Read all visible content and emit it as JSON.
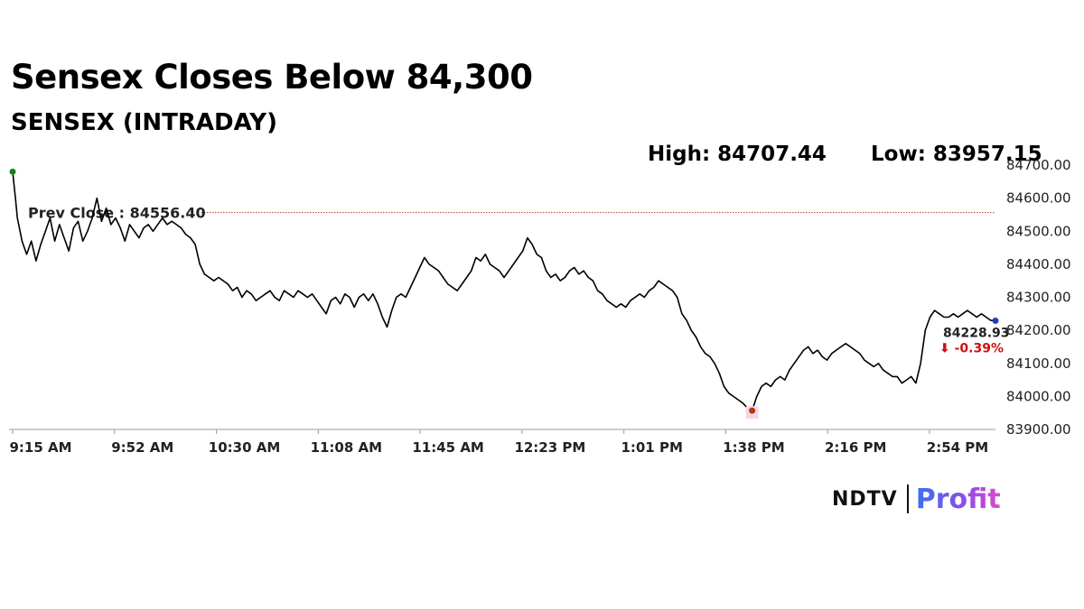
{
  "header": {
    "title": "Sensex Closes Below 84,300",
    "subtitle": "SENSEX (INTRADAY)",
    "high_text": "High: 84707.44",
    "low_text": "Low: 83957.15"
  },
  "logo": {
    "brand": "NDTV",
    "product": "Profit"
  },
  "colors": {
    "line": "#000000",
    "prev_close_line": "#c0392b",
    "open_marker": "#1a7f1a",
    "low_marker": "#b03a10",
    "close_marker": "#1f3fb5",
    "change_negative": "#d01010",
    "axis": "#999999"
  },
  "chart_data": {
    "type": "line",
    "title": "SENSEX (INTRADAY)",
    "xlabel": "",
    "ylabel": "",
    "ylim": [
      83900,
      84700
    ],
    "x_tick_labels": [
      "9:15 AM",
      "9:52 AM",
      "10:30 AM",
      "11:08 AM",
      "11:45 AM",
      "12:23 PM",
      "1:01 PM",
      "1:38 PM",
      "2:16 PM",
      "2:54 PM"
    ],
    "y_tick_labels": [
      "84700.00",
      "84600.00",
      "84500.00",
      "84400.00",
      "84300.00",
      "84200.00",
      "84100.00",
      "84000.00",
      "83900.00"
    ],
    "grid": false,
    "prev_close": {
      "label": "Prev Close : 84556.40",
      "value": 84556.4
    },
    "high": 84707.44,
    "low": 83957.15,
    "last": {
      "value_label": "84228.93",
      "change_label": "⬇ -0.39%"
    },
    "series": [
      {
        "values": [
          [
            0,
            84680
          ],
          [
            0.6,
            84600
          ],
          [
            1,
            84540
          ],
          [
            2,
            84470
          ],
          [
            3,
            84430
          ],
          [
            4,
            84470
          ],
          [
            5,
            84410
          ],
          [
            6,
            84460
          ],
          [
            7,
            84500
          ],
          [
            8,
            84540
          ],
          [
            9,
            84470
          ],
          [
            10,
            84520
          ],
          [
            11,
            84480
          ],
          [
            12,
            84440
          ],
          [
            13,
            84510
          ],
          [
            14,
            84530
          ],
          [
            15,
            84470
          ],
          [
            16,
            84500
          ],
          [
            17,
            84540
          ],
          [
            18,
            84600
          ],
          [
            19,
            84530
          ],
          [
            20,
            84570
          ],
          [
            21,
            84520
          ],
          [
            22,
            84540
          ],
          [
            23,
            84510
          ],
          [
            24,
            84470
          ],
          [
            25,
            84520
          ],
          [
            26,
            84500
          ],
          [
            27,
            84480
          ],
          [
            28,
            84510
          ],
          [
            29,
            84520
          ],
          [
            30,
            84500
          ],
          [
            31,
            84520
          ],
          [
            32,
            84540
          ],
          [
            33,
            84520
          ],
          [
            34,
            84530
          ],
          [
            35,
            84520
          ],
          [
            36,
            84510
          ],
          [
            37,
            84490
          ],
          [
            38,
            84480
          ],
          [
            39,
            84460
          ],
          [
            40,
            84400
          ],
          [
            41,
            84370
          ],
          [
            42,
            84360
          ],
          [
            43,
            84350
          ],
          [
            44,
            84360
          ],
          [
            45,
            84350
          ],
          [
            46,
            84340
          ],
          [
            47,
            84320
          ],
          [
            48,
            84330
          ],
          [
            49,
            84300
          ],
          [
            50,
            84320
          ],
          [
            51,
            84310
          ],
          [
            52,
            84290
          ],
          [
            53,
            84300
          ],
          [
            54,
            84310
          ],
          [
            55,
            84320
          ],
          [
            56,
            84300
          ],
          [
            57,
            84290
          ],
          [
            58,
            84320
          ],
          [
            59,
            84310
          ],
          [
            60,
            84300
          ],
          [
            61,
            84320
          ],
          [
            62,
            84310
          ],
          [
            63,
            84300
          ],
          [
            64,
            84310
          ],
          [
            65,
            84290
          ],
          [
            66,
            84270
          ],
          [
            67,
            84250
          ],
          [
            68,
            84290
          ],
          [
            69,
            84300
          ],
          [
            70,
            84280
          ],
          [
            71,
            84310
          ],
          [
            72,
            84300
          ],
          [
            73,
            84270
          ],
          [
            74,
            84300
          ],
          [
            75,
            84310
          ],
          [
            76,
            84290
          ],
          [
            77,
            84310
          ],
          [
            78,
            84280
          ],
          [
            79,
            84240
          ],
          [
            80,
            84210
          ],
          [
            81,
            84260
          ],
          [
            82,
            84300
          ],
          [
            83,
            84310
          ],
          [
            84,
            84300
          ],
          [
            85,
            84330
          ],
          [
            86,
            84360
          ],
          [
            87,
            84390
          ],
          [
            88,
            84420
          ],
          [
            89,
            84400
          ],
          [
            90,
            84390
          ],
          [
            91,
            84380
          ],
          [
            92,
            84360
          ],
          [
            93,
            84340
          ],
          [
            94,
            84330
          ],
          [
            95,
            84320
          ],
          [
            96,
            84340
          ],
          [
            97,
            84360
          ],
          [
            98,
            84380
          ],
          [
            99,
            84420
          ],
          [
            100,
            84410
          ],
          [
            101,
            84430
          ],
          [
            102,
            84400
          ],
          [
            103,
            84390
          ],
          [
            104,
            84380
          ],
          [
            105,
            84360
          ],
          [
            106,
            84380
          ],
          [
            107,
            84400
          ],
          [
            108,
            84420
          ],
          [
            109,
            84440
          ],
          [
            110,
            84480
          ],
          [
            111,
            84460
          ],
          [
            112,
            84430
          ],
          [
            113,
            84420
          ],
          [
            114,
            84380
          ],
          [
            115,
            84360
          ],
          [
            116,
            84370
          ],
          [
            117,
            84350
          ],
          [
            118,
            84360
          ],
          [
            119,
            84380
          ],
          [
            120,
            84390
          ],
          [
            121,
            84370
          ],
          [
            122,
            84380
          ],
          [
            123,
            84360
          ],
          [
            124,
            84350
          ],
          [
            125,
            84320
          ],
          [
            126,
            84310
          ],
          [
            127,
            84290
          ],
          [
            128,
            84280
          ],
          [
            129,
            84270
          ],
          [
            130,
            84280
          ],
          [
            131,
            84270
          ],
          [
            132,
            84290
          ],
          [
            133,
            84300
          ],
          [
            134,
            84310
          ],
          [
            135,
            84300
          ],
          [
            136,
            84320
          ],
          [
            137,
            84330
          ],
          [
            138,
            84350
          ],
          [
            139,
            84340
          ],
          [
            140,
            84330
          ],
          [
            141,
            84320
          ],
          [
            142,
            84300
          ],
          [
            143,
            84250
          ],
          [
            144,
            84230
          ],
          [
            145,
            84200
          ],
          [
            146,
            84180
          ],
          [
            147,
            84150
          ],
          [
            148,
            84130
          ],
          [
            149,
            84120
          ],
          [
            150,
            84100
          ],
          [
            151,
            84070
          ],
          [
            152,
            84030
          ],
          [
            153,
            84010
          ],
          [
            154,
            84000
          ],
          [
            155,
            83990
          ],
          [
            156,
            83980
          ],
          [
            157,
            83965
          ],
          [
            158,
            83957
          ],
          [
            159,
            84000
          ],
          [
            160,
            84030
          ],
          [
            161,
            84040
          ],
          [
            162,
            84030
          ],
          [
            163,
            84050
          ],
          [
            164,
            84060
          ],
          [
            165,
            84050
          ],
          [
            166,
            84080
          ],
          [
            167,
            84100
          ],
          [
            168,
            84120
          ],
          [
            169,
            84140
          ],
          [
            170,
            84150
          ],
          [
            171,
            84130
          ],
          [
            172,
            84140
          ],
          [
            173,
            84120
          ],
          [
            174,
            84110
          ],
          [
            175,
            84130
          ],
          [
            176,
            84140
          ],
          [
            177,
            84150
          ],
          [
            178,
            84160
          ],
          [
            179,
            84150
          ],
          [
            180,
            84140
          ],
          [
            181,
            84130
          ],
          [
            182,
            84110
          ],
          [
            183,
            84100
          ],
          [
            184,
            84090
          ],
          [
            185,
            84100
          ],
          [
            186,
            84080
          ],
          [
            187,
            84070
          ],
          [
            188,
            84060
          ],
          [
            189,
            84060
          ],
          [
            190,
            84040
          ],
          [
            191,
            84050
          ],
          [
            192,
            84060
          ],
          [
            193,
            84040
          ],
          [
            194,
            84100
          ],
          [
            195,
            84200
          ],
          [
            196,
            84240
          ],
          [
            197,
            84260
          ],
          [
            198,
            84250
          ],
          [
            199,
            84240
          ],
          [
            200,
            84240
          ],
          [
            201,
            84250
          ],
          [
            202,
            84240
          ],
          [
            203,
            84250
          ],
          [
            204,
            84260
          ],
          [
            205,
            84250
          ],
          [
            206,
            84240
          ],
          [
            207,
            84250
          ],
          [
            208,
            84240
          ],
          [
            209,
            84230
          ],
          [
            210,
            84228.93
          ]
        ]
      }
    ]
  }
}
